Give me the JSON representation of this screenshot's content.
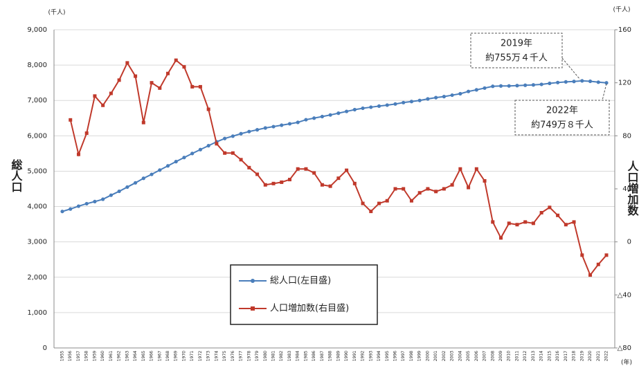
{
  "chart_data": {
    "type": "line",
    "y_label": "総人口",
    "y2_label": "人口増加数",
    "y_unit": "(千人)",
    "y2_unit": "(千人)",
    "x_unit": "(年)",
    "categories": [
      "1955",
      "1956",
      "1957",
      "1958",
      "1959",
      "1960",
      "1961",
      "1962",
      "1963",
      "1964",
      "1965",
      "1966",
      "1967",
      "1968",
      "1969",
      "1970",
      "1971",
      "1972",
      "1973",
      "1974",
      "1975",
      "1976",
      "1977",
      "1978",
      "1979",
      "1980",
      "1981",
      "1982",
      "1983",
      "1984",
      "1985",
      "1986",
      "1987",
      "1988",
      "1989",
      "1990",
      "1991",
      "1992",
      "1993",
      "1994",
      "1995",
      "1996",
      "1997",
      "1998",
      "1999",
      "2000",
      "2001",
      "2002",
      "2003",
      "2004",
      "2005",
      "2006",
      "2007",
      "2008",
      "2009",
      "2010",
      "2011",
      "2012",
      "2013",
      "2014",
      "2015",
      "2016",
      "2017",
      "2018",
      "2019",
      "2020",
      "2021",
      "2022"
    ],
    "series": [
      {
        "name": "総人口(左目盛)",
        "color": "#4a7ebb",
        "axis": "y",
        "values": [
          3860,
          3930,
          4010,
          4080,
          4140,
          4206,
          4320,
          4430,
          4550,
          4670,
          4798,
          4910,
          5030,
          5150,
          5270,
          5386,
          5500,
          5610,
          5720,
          5830,
          5924,
          5990,
          6060,
          6120,
          6170,
          6222,
          6260,
          6300,
          6340,
          6380,
          6455,
          6500,
          6545,
          6590,
          6640,
          6690,
          6740,
          6780,
          6810,
          6840,
          6868,
          6900,
          6940,
          6970,
          7000,
          7043,
          7080,
          7110,
          7150,
          7190,
          7255,
          7300,
          7350,
          7400,
          7410,
          7411,
          7420,
          7430,
          7440,
          7455,
          7483,
          7507,
          7525,
          7537,
          7554,
          7542,
          7517,
          7498
        ]
      },
      {
        "name": "人口増加数(右目盛)",
        "color": "#c0392b",
        "axis": "y2",
        "values": [
          null,
          92,
          66,
          82,
          110,
          103,
          112,
          122,
          135,
          125,
          90,
          120,
          116,
          127,
          137,
          132,
          117,
          117,
          100,
          74,
          67,
          67,
          62,
          56,
          51,
          43,
          44,
          45,
          47,
          55,
          55,
          52,
          43,
          42,
          48,
          54,
          44,
          29,
          23,
          29,
          31,
          40,
          40,
          31,
          37,
          40,
          38,
          40,
          43,
          55,
          41,
          55,
          46,
          15,
          3,
          14,
          13,
          15,
          14,
          22,
          26,
          20,
          13,
          15,
          -10,
          -25,
          -17,
          -10
        ]
      }
    ],
    "ylim": [
      0,
      9000
    ],
    "yticks": [
      0,
      {
        "value": 1000,
        "label": "1,000"
      },
      {
        "value": 2000,
        "label": "2,000"
      },
      {
        "value": 3000,
        "label": "3,000"
      },
      {
        "value": 4000,
        "label": "4,000"
      },
      {
        "value": 5000,
        "label": "5,000"
      },
      {
        "value": 6000,
        "label": "6,000"
      },
      {
        "value": 7000,
        "label": "7,000"
      },
      {
        "value": 8000,
        "label": "8,000"
      },
      {
        "value": 9000,
        "label": "9,000"
      }
    ],
    "y2lim": [
      -80,
      160
    ],
    "y2ticks": [
      {
        "value": -80,
        "label": "△80"
      },
      {
        "value": -40,
        "label": "△40"
      },
      0,
      40,
      80,
      120,
      160
    ],
    "grid": true,
    "annotations": [
      {
        "year": "2019年",
        "text": "約755万４千人"
      },
      {
        "year": "2022年",
        "text": "約749万８千人"
      }
    ]
  }
}
